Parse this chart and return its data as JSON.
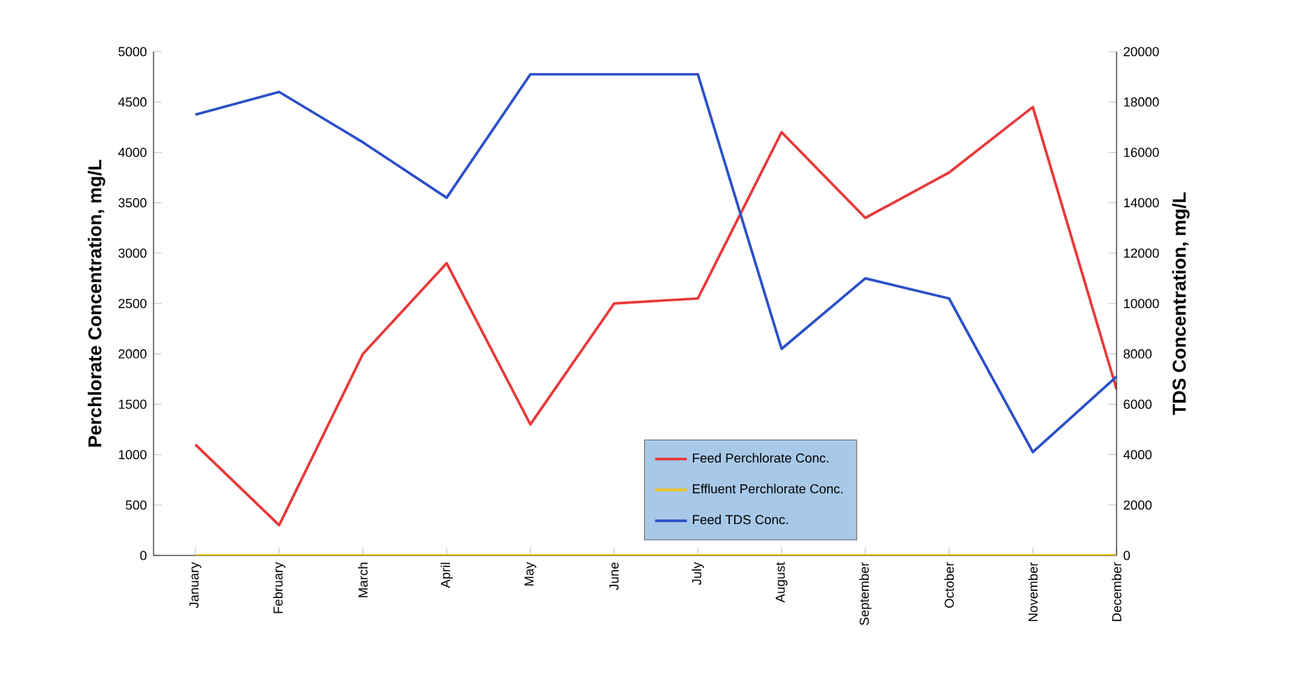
{
  "chart_data": {
    "type": "line",
    "categories": [
      "January",
      "February",
      "March",
      "April",
      "May",
      "June",
      "July",
      "August",
      "September",
      "October",
      "November",
      "December"
    ],
    "series": [
      {
        "name": "Feed Perchlorate Conc.",
        "color": "#e8393a",
        "values": [
          1100,
          300,
          2000,
          2900,
          1300,
          2500,
          2550,
          4200,
          3350,
          3800,
          4450,
          1650
        ]
      },
      {
        "name": "Effluent Perchlorate Conc.",
        "color": "#f0c419",
        "values": [
          0,
          0,
          0,
          0,
          0,
          0,
          0,
          0,
          0,
          0,
          0,
          0
        ]
      },
      {
        "name": "Feed TDS Conc.",
        "color": "#2b50c8",
        "axis": "y2",
        "values": [
          17500,
          18400,
          16400,
          14200,
          19100,
          19100,
          19100,
          8200,
          11000,
          10200,
          4100,
          7100
        ]
      }
    ],
    "ylabel": "Perchlorate Concentration, mg/L",
    "y2label": "TDS Concentration, mg/L",
    "ylim": [
      0,
      5000
    ],
    "yticks": [
      0,
      500,
      1000,
      1500,
      2000,
      2500,
      3000,
      3500,
      4000,
      4500,
      5000
    ],
    "y2lim": [
      0,
      20000
    ],
    "y2ticks": [
      0,
      2000,
      4000,
      6000,
      8000,
      10000,
      12000,
      14000,
      16000,
      18000,
      20000
    ],
    "legend": "bottom",
    "grid": false
  }
}
